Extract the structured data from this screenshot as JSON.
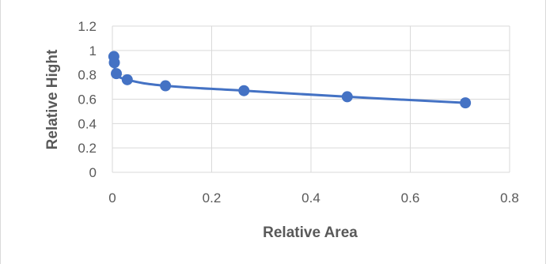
{
  "chart_data": {
    "type": "scatter",
    "title": "",
    "xlabel": "Relative Area",
    "ylabel": "Relative Hight",
    "xlim": [
      0,
      0.8
    ],
    "ylim": [
      0,
      1.2
    ],
    "xticks": [
      "0",
      "0.2",
      "0.4",
      "0.6",
      "0.8"
    ],
    "yticks": [
      "0",
      "0.2",
      "0.4",
      "0.6",
      "0.8",
      "1",
      "1.2"
    ],
    "grid": true,
    "legend": "none",
    "series": [
      {
        "color": "#4472c4",
        "line": "smooth",
        "x": [
          0.003,
          0.004,
          0.008,
          0.03,
          0.107,
          0.265,
          0.473,
          0.711
        ],
        "y": [
          0.95,
          0.9,
          0.81,
          0.76,
          0.71,
          0.67,
          0.62,
          0.57
        ]
      }
    ]
  }
}
